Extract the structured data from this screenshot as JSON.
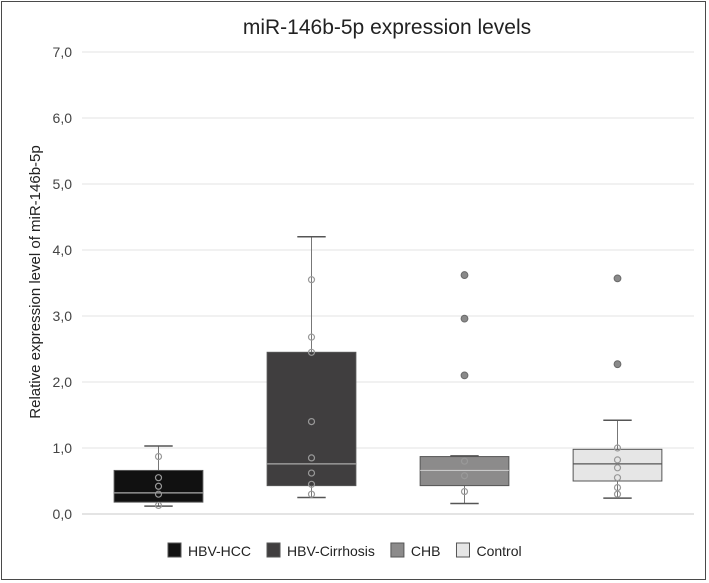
{
  "chart_data": {
    "type": "box",
    "title": "miR-146b-5p expression levels",
    "xlabel": "",
    "ylabel": "Relative expression level of miR-146b-5p",
    "ylim": [
      0,
      7
    ],
    "yticks": [
      "0,0",
      "1,0",
      "2,0",
      "3,0",
      "4,0",
      "5,0",
      "6,0",
      "7,0"
    ],
    "grid": true,
    "legend_position": "bottom",
    "series": [
      {
        "name": "HBV-HCC",
        "color": "#111111",
        "median_color": "#aaaaaa",
        "whisker_low": 0.12,
        "q1": 0.18,
        "median": 0.32,
        "q3": 0.66,
        "whisker_high": 1.03,
        "outliers": [],
        "points": [
          0.13,
          0.3,
          0.42,
          0.55,
          0.87
        ]
      },
      {
        "name": "HBV-Cirrhosis",
        "color": "#403e3f",
        "median_color": "#aaaaaa",
        "whisker_low": 0.25,
        "q1": 0.43,
        "median": 0.76,
        "q3": 2.45,
        "whisker_high": 4.2,
        "outliers": [],
        "points": [
          0.3,
          0.45,
          0.62,
          0.85,
          1.4,
          2.45,
          2.68,
          3.55
        ]
      },
      {
        "name": "CHB",
        "color": "#8c8b8b",
        "median_color": "#c8c8c8",
        "whisker_low": 0.16,
        "q1": 0.43,
        "median": 0.66,
        "q3": 0.87,
        "whisker_high": 0.88,
        "outliers": [
          2.1,
          2.96,
          3.62
        ],
        "points": [
          0.34,
          0.58,
          0.8
        ]
      },
      {
        "name": "Control",
        "color": "#e6e6e6",
        "median_color": "#555555",
        "whisker_low": 0.24,
        "q1": 0.5,
        "median": 0.76,
        "q3": 0.98,
        "whisker_high": 1.42,
        "outliers": [
          2.27,
          3.57
        ],
        "points": [
          0.3,
          0.4,
          0.55,
          0.7,
          0.82,
          1.0
        ]
      }
    ]
  }
}
